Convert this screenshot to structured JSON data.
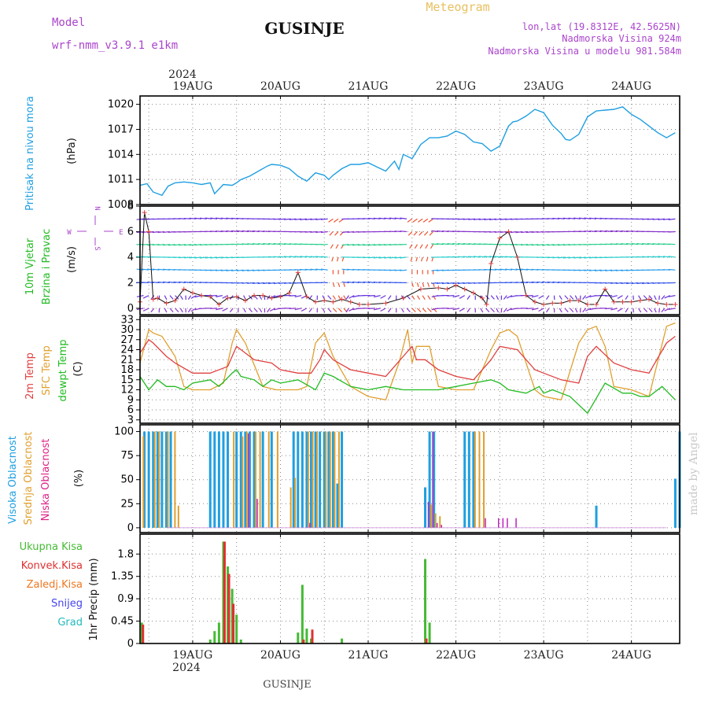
{
  "header": {
    "model_label": "Model",
    "model_name": "wrf-nmm_v3.9.1  e1km",
    "title": "GUSINJE",
    "meteogram": "Meteogram",
    "coords": "lon,lat (19.8312E, 42.5625N)",
    "elevation": "Nadmorska Visina 924m",
    "model_elevation": "Nadmorska Visina u modelu 981.584m",
    "footer_location": "GUSINJE",
    "watermark": "made by Angel"
  },
  "time_axis": {
    "year": "2024",
    "day_labels": [
      "19AUG",
      "20AUG",
      "21AUG",
      "22AUG",
      "23AUG",
      "24AUG"
    ],
    "range_days": [
      -0.6,
      5.55
    ]
  },
  "colors": {
    "pressure": "#1f9fe0",
    "wind_label": "#22bb22",
    "compass": "#aa44cc",
    "t2m": "#e04040",
    "tsfc": "#e0a030",
    "dewpt": "#22bb22",
    "high_cloud": "#1f9fe0",
    "mid_cloud": "#e0a030",
    "low_cloud": "#bb22bb",
    "total_precip": "#44bb33",
    "conv_precip": "#e03030",
    "frz_precip": "#ee7722",
    "snow": "#4444ee",
    "hail": "#22bbbb"
  },
  "panels": {
    "pressure": {
      "l1": "Pritisak na nivou mora",
      "unit": "(hPa)",
      "ticks": [
        "1008",
        "1011",
        "1014",
        "1017",
        "1020"
      ]
    },
    "wind": {
      "l1": "10m Vjetar",
      "l2": "Brzina i Pravac",
      "unit": "(m/s)",
      "ticks": [
        "0",
        "2",
        "4",
        "6",
        "8"
      ],
      "compass_n": "N",
      "compass_s": "S",
      "compass_w": "W",
      "compass_e": "E"
    },
    "temp": {
      "l1": "2m Temp",
      "l2": "SFC Temp",
      "l3": "dewpt Temp",
      "unit": "(C)",
      "ticks": [
        "3",
        "6",
        "9",
        "12",
        "15",
        "18",
        "21",
        "24",
        "27",
        "30",
        "33"
      ]
    },
    "cloud": {
      "l1": "Visoka Oblacnost",
      "l2": "Srednja Oblacnost",
      "l3": "Niska Oblacnost",
      "unit": "(%)",
      "ticks": [
        "0",
        "25",
        "50",
        "75",
        "100"
      ]
    },
    "precip": {
      "unit": "1hr Precip (mm)",
      "ticks": [
        "0",
        "0.45",
        "0.9",
        "1.35",
        "1.8"
      ],
      "legend": [
        "Ukupna Kisa",
        "Konvek.Kisa",
        "Zaledj.Kisa",
        "Snijeg",
        "Grad"
      ]
    }
  },
  "chart_data": [
    {
      "type": "line",
      "title": "Pritisak na nivou mora",
      "ylabel": "(hPa)",
      "ylim": [
        1008,
        1021
      ],
      "x_units": "days since 19AUG 00:00",
      "series": [
        {
          "name": "Pritisak na nivou mora",
          "x": [
            -0.6,
            -0.52,
            -0.45,
            -0.35,
            -0.28,
            -0.2,
            -0.1,
            0,
            0.1,
            0.2,
            0.25,
            0.35,
            0.45,
            0.5,
            0.55,
            0.65,
            0.75,
            0.85,
            0.9,
            1.0,
            1.1,
            1.2,
            1.3,
            1.4,
            1.5,
            1.55,
            1.6,
            1.7,
            1.8,
            1.9,
            2.0,
            2.1,
            2.2,
            2.3,
            2.35,
            2.4,
            2.5,
            2.6,
            2.7,
            2.8,
            2.9,
            3.0,
            3.1,
            3.2,
            3.3,
            3.4,
            3.5,
            3.6,
            3.65,
            3.7,
            3.8,
            3.9,
            4.0,
            4.1,
            4.2,
            4.25,
            4.3,
            4.4,
            4.5,
            4.6,
            4.7,
            4.8,
            4.9,
            5.0,
            5.1,
            5.2,
            5.3,
            5.4,
            5.5
          ],
          "values": [
            1010.3,
            1010.5,
            1009.5,
            1009.1,
            1010.2,
            1010.6,
            1010.7,
            1010.6,
            1010.4,
            1010.6,
            1009.3,
            1010.4,
            1010.3,
            1010.6,
            1011.0,
            1011.4,
            1012.0,
            1012.6,
            1012.8,
            1012.7,
            1012.3,
            1011.4,
            1010.8,
            1011.8,
            1011.5,
            1011.0,
            1011.5,
            1012.3,
            1012.8,
            1012.8,
            1013.0,
            1012.5,
            1012.0,
            1013.2,
            1012.2,
            1014.0,
            1013.5,
            1015.2,
            1016.0,
            1016.0,
            1016.2,
            1016.8,
            1016.4,
            1015.5,
            1015.3,
            1014.4,
            1015.0,
            1017.4,
            1017.9,
            1018.0,
            1018.6,
            1019.4,
            1019.0,
            1017.5,
            1016.5,
            1015.8,
            1015.7,
            1016.4,
            1018.5,
            1019.2,
            1019.3,
            1019.4,
            1019.7,
            1018.8,
            1018.2,
            1017.4,
            1016.6,
            1016.0,
            1016.6
          ]
        }
      ]
    },
    {
      "type": "line",
      "title": "10m Vjetar Brzina i Pravac",
      "ylabel": "(m/s)",
      "ylim": [
        -0.5,
        8
      ],
      "series": [
        {
          "name": "Brzina",
          "x": [
            -0.6,
            -0.55,
            -0.5,
            -0.45,
            -0.4,
            -0.3,
            -0.2,
            -0.1,
            0,
            0.1,
            0.2,
            0.3,
            0.4,
            0.5,
            0.6,
            0.7,
            0.8,
            0.9,
            1.0,
            1.1,
            1.2,
            1.3,
            1.4,
            1.5,
            1.6,
            1.7,
            1.8,
            1.9,
            2.0,
            2.2,
            2.4,
            2.6,
            2.8,
            2.9,
            3.0,
            3.1,
            3.2,
            3.3,
            3.35,
            3.4,
            3.5,
            3.6,
            3.7,
            3.8,
            3.9,
            4.0,
            4.1,
            4.2,
            4.3,
            4.4,
            4.5,
            4.6,
            4.7,
            4.8,
            4.9,
            5.0,
            5.1,
            5.2,
            5.3,
            5.4,
            5.5
          ],
          "values": [
            0.5,
            7.5,
            6.0,
            0.7,
            0.8,
            0.4,
            0.6,
            1.5,
            1.2,
            1.0,
            0.9,
            0.3,
            0.8,
            0.9,
            0.6,
            1.0,
            1.0,
            0.8,
            0.9,
            1.2,
            2.8,
            0.9,
            0.5,
            0.6,
            0.5,
            0.7,
            0.5,
            0.3,
            0.3,
            0.4,
            0.8,
            1.5,
            1.6,
            1.5,
            1.8,
            1.5,
            1.2,
            0.8,
            0.3,
            3.5,
            5.5,
            6.0,
            4.0,
            1.0,
            0.5,
            0.3,
            0.4,
            0.4,
            0.6,
            0.6,
            0.3,
            0.3,
            1.5,
            0.5,
            0.5,
            0.5,
            0.6,
            0.7,
            0.4,
            0.3,
            0.3
          ]
        }
      ]
    },
    {
      "type": "line",
      "title": "Temperatura",
      "ylabel": "(C)",
      "ylim": [
        3,
        33
      ],
      "series": [
        {
          "name": "2m Temp",
          "x": [
            -0.6,
            -0.5,
            -0.45,
            -0.3,
            -0.2,
            0,
            0.2,
            0.4,
            0.5,
            0.55,
            0.7,
            0.9,
            1.0,
            1.2,
            1.35,
            1.45,
            1.5,
            1.6,
            1.8,
            2.0,
            2.2,
            2.4,
            2.5,
            2.55,
            2.65,
            2.8,
            3.0,
            3.2,
            3.4,
            3.5,
            3.7,
            3.9,
            4.0,
            4.2,
            4.4,
            4.5,
            4.6,
            4.8,
            5.0,
            5.2,
            5.4,
            5.5
          ],
          "values": [
            23,
            27,
            26,
            22,
            20,
            17,
            17,
            19,
            25,
            24,
            21,
            20,
            18,
            17,
            17,
            21,
            24,
            21,
            18,
            17,
            16,
            22,
            25,
            21,
            21,
            18,
            16,
            15,
            21,
            25,
            24,
            18,
            17,
            15,
            14,
            22,
            25,
            20,
            18,
            17,
            26,
            28
          ]
        },
        {
          "name": "SFC Temp",
          "x": [
            -0.6,
            -0.5,
            -0.45,
            -0.35,
            -0.2,
            -0.1,
            0,
            0.2,
            0.35,
            0.45,
            0.5,
            0.6,
            0.8,
            0.95,
            1.0,
            1.2,
            1.3,
            1.4,
            1.5,
            1.6,
            1.8,
            2.0,
            2.2,
            2.35,
            2.45,
            2.5,
            2.55,
            2.7,
            2.8,
            3.0,
            3.2,
            3.4,
            3.5,
            3.6,
            3.7,
            3.9,
            4.0,
            4.2,
            4.4,
            4.5,
            4.6,
            4.7,
            4.8,
            5.0,
            5.2,
            5.4,
            5.5
          ],
          "values": [
            20,
            30,
            29,
            28,
            22,
            13,
            12,
            12,
            14,
            26,
            30,
            26,
            13,
            12,
            12,
            12,
            13,
            26,
            29,
            22,
            13,
            10,
            9,
            20,
            30,
            20,
            25,
            25,
            13,
            12,
            12,
            24,
            29,
            30,
            28,
            12,
            10,
            9,
            26,
            30,
            31,
            25,
            13,
            12,
            10,
            31,
            32
          ]
        },
        {
          "name": "dewpt Temp",
          "x": [
            -0.6,
            -0.5,
            -0.4,
            -0.3,
            -0.2,
            -0.1,
            0,
            0.2,
            0.3,
            0.45,
            0.5,
            0.55,
            0.7,
            0.8,
            0.9,
            1.0,
            1.2,
            1.4,
            1.5,
            1.6,
            1.8,
            2.0,
            2.2,
            2.4,
            2.6,
            2.8,
            3.0,
            3.2,
            3.4,
            3.5,
            3.6,
            3.8,
            3.95,
            4.0,
            4.1,
            4.2,
            4.3,
            4.5,
            4.7,
            4.9,
            5.0,
            5.1,
            5.2,
            5.35,
            5.5
          ],
          "values": [
            16,
            12,
            15,
            13,
            13,
            12,
            14,
            15,
            13,
            17,
            18,
            16,
            15,
            13,
            15,
            14,
            15,
            12,
            17,
            16,
            13,
            12,
            13,
            12,
            12,
            12,
            13,
            14,
            15,
            14,
            12,
            11,
            13,
            11,
            12,
            11,
            10,
            5,
            14,
            11,
            11,
            10,
            10,
            13,
            9
          ]
        }
      ]
    },
    {
      "type": "bar",
      "title": "Oblacnost",
      "ylabel": "(%)",
      "ylim": [
        0,
        100
      ],
      "series": [
        {
          "name": "Visoka Oblacnost",
          "x": [
            -0.55,
            -0.5,
            -0.45,
            -0.4,
            -0.35,
            -0.3,
            -0.25,
            0.2,
            0.25,
            0.3,
            0.35,
            0.4,
            0.5,
            0.55,
            0.6,
            0.65,
            0.7,
            0.8,
            0.9,
            1.15,
            1.2,
            1.25,
            1.3,
            1.35,
            1.4,
            1.45,
            1.5,
            1.55,
            1.6,
            1.7,
            1.65,
            2.65,
            2.7,
            2.75,
            3.1,
            3.15,
            3.2,
            4.6,
            5.5,
            5.55
          ],
          "values": [
            100,
            100,
            100,
            100,
            100,
            100,
            100,
            100,
            100,
            100,
            100,
            100,
            100,
            100,
            100,
            100,
            100,
            100,
            100,
            100,
            100,
            100,
            100,
            100,
            100,
            100,
            100,
            100,
            100,
            100,
            46,
            42,
            100,
            100,
            100,
            100,
            100,
            23,
            51,
            100
          ]
        },
        {
          "name": "Srednja Oblacnost",
          "x": [
            -0.58,
            -0.45,
            -0.4,
            -0.3,
            -0.22,
            -0.18,
            0.45,
            0.55,
            0.6,
            0.7,
            0.75,
            0.85,
            0.95,
            1.1,
            1.15,
            1.3,
            1.35,
            1.4,
            1.5,
            1.55,
            1.6,
            1.65,
            2.7,
            2.75,
            2.8,
            3.2,
            3.25,
            3.3
          ],
          "values": [
            95,
            100,
            100,
            100,
            100,
            23,
            100,
            95,
            100,
            100,
            100,
            100,
            100,
            42,
            52,
            100,
            100,
            100,
            100,
            100,
            100,
            100,
            24,
            15,
            12,
            100,
            100,
            100
          ]
        },
        {
          "name": "Niska Oblacnost",
          "x": [
            2.65,
            2.7,
            2.75,
            2.8,
            3.3,
            3.45,
            3.5,
            3.55,
            3.65,
            0.6,
            0.7,
            1.3
          ],
          "values": [
            27,
            100,
            5,
            3,
            10,
            10,
            10,
            10,
            10,
            98,
            30,
            5
          ]
        }
      ]
    },
    {
      "type": "bar",
      "title": "1hr Precip",
      "ylabel": "1hr Precip (mm)",
      "ylim": [
        0,
        2.1
      ],
      "series": [
        {
          "name": "Ukupna Kisa",
          "x": [
            -0.58,
            0.2,
            0.25,
            0.3,
            0.35,
            0.4,
            0.45,
            0.5,
            0.55,
            1.7,
            1.2,
            1.25,
            1.3,
            1.35,
            2.65,
            2.7
          ],
          "values": [
            0.42,
            0.08,
            0.25,
            0.42,
            2.05,
            1.55,
            1.1,
            0.58,
            0.08,
            0.1,
            0.22,
            1.18,
            0.3,
            0.1,
            1.7,
            0.42
          ]
        },
        {
          "name": "Konvek.Kisa",
          "x": [
            -0.58,
            0.35,
            0.4,
            0.45,
            1.25,
            1.35,
            2.65
          ],
          "values": [
            0.38,
            2.05,
            1.4,
            0.8,
            0.08,
            0.28,
            0.1
          ]
        }
      ]
    }
  ]
}
